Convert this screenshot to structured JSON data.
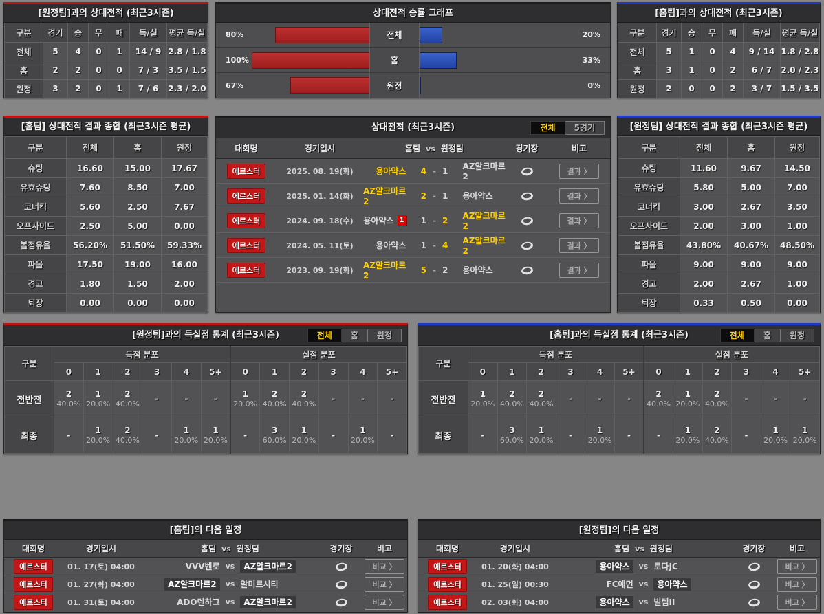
{
  "accent": {
    "red": "#c01313",
    "blue": "#2038c8",
    "yellow": "#ffd000",
    "bar_red": "#b02a2a",
    "bar_blue": "#2c4eb5"
  },
  "shared": {
    "vs": "vs",
    "score_sep": "-"
  },
  "record_vs_away": {
    "title": "[원정팀]과의 상대전적 (최근3시즌)",
    "headers": [
      "구분",
      "경기",
      "승",
      "무",
      "패",
      "득/실",
      "평균 득/실"
    ],
    "rows": [
      {
        "label": "전체",
        "cells": [
          "5",
          "4",
          "0",
          "1",
          "14 / 9",
          "2.8 / 1.8"
        ]
      },
      {
        "label": "홈",
        "cells": [
          "2",
          "2",
          "0",
          "0",
          "7 / 3",
          "3.5 / 1.5"
        ]
      },
      {
        "label": "원정",
        "cells": [
          "3",
          "2",
          "0",
          "1",
          "7 / 6",
          "2.3 / 2.0"
        ]
      }
    ]
  },
  "win_graph": {
    "title": "상대전적 승률 그래프",
    "rows": [
      {
        "label": "전체",
        "home_pct": "80%",
        "home_val": 80,
        "away_pct": "20%",
        "away_val": 20
      },
      {
        "label": "홈",
        "home_pct": "100%",
        "home_val": 100,
        "away_pct": "33%",
        "away_val": 33
      },
      {
        "label": "원정",
        "home_pct": "67%",
        "home_val": 67,
        "away_pct": "0%",
        "away_val": 0
      }
    ]
  },
  "record_vs_home": {
    "title": "[홈팀]과의 상대전적 (최근3시즌)",
    "headers": [
      "구분",
      "경기",
      "승",
      "무",
      "패",
      "득/실",
      "평균 득/실"
    ],
    "rows": [
      {
        "label": "전체",
        "cells": [
          "5",
          "1",
          "0",
          "4",
          "9 / 14",
          "1.8 / 2.8"
        ]
      },
      {
        "label": "홈",
        "cells": [
          "3",
          "1",
          "0",
          "2",
          "6 / 7",
          "2.0 / 2.3"
        ]
      },
      {
        "label": "원정",
        "cells": [
          "2",
          "0",
          "0",
          "2",
          "3 / 7",
          "1.5 / 3.5"
        ]
      }
    ]
  },
  "summary_home": {
    "title": "[홈팀] 상대전적 결과 종합 (최근3시즌 평균)",
    "headers": [
      "구분",
      "전체",
      "홈",
      "원정"
    ],
    "rows": [
      {
        "label": "슈팅",
        "cells": [
          "16.60",
          "15.00",
          "17.67"
        ]
      },
      {
        "label": "유효슈팅",
        "cells": [
          "7.60",
          "8.50",
          "7.00"
        ]
      },
      {
        "label": "코너킥",
        "cells": [
          "5.60",
          "2.50",
          "7.67"
        ]
      },
      {
        "label": "오프사이드",
        "cells": [
          "2.50",
          "5.00",
          "0.00"
        ]
      },
      {
        "label": "볼점유율",
        "cells": [
          "56.20%",
          "51.50%",
          "59.33%"
        ]
      },
      {
        "label": "파울",
        "cells": [
          "17.50",
          "19.00",
          "16.00"
        ]
      },
      {
        "label": "경고",
        "cells": [
          "1.80",
          "1.50",
          "2.00"
        ]
      },
      {
        "label": "퇴장",
        "cells": [
          "0.00",
          "0.00",
          "0.00"
        ]
      }
    ]
  },
  "summary_away": {
    "title": "[원정팀] 상대전적 결과 종합 (최근3시즌 평균)",
    "headers": [
      "구분",
      "전체",
      "홈",
      "원정"
    ],
    "rows": [
      {
        "label": "슈팅",
        "cells": [
          "11.60",
          "9.67",
          "14.50"
        ]
      },
      {
        "label": "유효슈팅",
        "cells": [
          "5.80",
          "5.00",
          "7.00"
        ]
      },
      {
        "label": "코너킥",
        "cells": [
          "3.00",
          "2.67",
          "3.50"
        ]
      },
      {
        "label": "오프사이드",
        "cells": [
          "2.00",
          "3.00",
          "1.00"
        ]
      },
      {
        "label": "볼점유율",
        "cells": [
          "43.80%",
          "40.67%",
          "48.50%"
        ]
      },
      {
        "label": "파울",
        "cells": [
          "9.00",
          "9.00",
          "9.00"
        ]
      },
      {
        "label": "경고",
        "cells": [
          "2.00",
          "2.67",
          "1.00"
        ]
      },
      {
        "label": "퇴장",
        "cells": [
          "0.33",
          "0.50",
          "0.00"
        ]
      }
    ]
  },
  "h2h": {
    "title": "상대전적 (최근3시즌)",
    "tabs": [
      {
        "label": "전체"
      },
      {
        "label": "5경기"
      }
    ],
    "headers": {
      "league": "대회명",
      "datetime": "경기일시",
      "home": "홈팀",
      "vs": "vs",
      "away": "원정팀",
      "venue": "경기장",
      "note": "비고"
    },
    "result_button": "결과 〉",
    "rows": [
      {
        "league": "에르스터",
        "date": "2025. 08. 19(화)",
        "home": "용아약스",
        "home_score": "4",
        "away_score": "1",
        "away": "AZ알크마르2"
      },
      {
        "league": "에르스터",
        "date": "2025. 01. 14(화)",
        "home": "AZ알크마르2",
        "home_score": "2",
        "away_score": "1",
        "away": "용아약스"
      },
      {
        "league": "에르스터",
        "date": "2024. 09. 18(수)",
        "home": "용아약스",
        "home_card": "1",
        "home_score": "1",
        "away_score": "2",
        "away": "AZ알크마르2"
      },
      {
        "league": "에르스터",
        "date": "2024. 05. 11(토)",
        "home": "용아약스",
        "home_score": "1",
        "away_score": "4",
        "away": "AZ알크마르2"
      },
      {
        "league": "에르스터",
        "date": "2023. 09. 19(화)",
        "home": "AZ알크마르2",
        "home_score": "5",
        "away_score": "2",
        "away": "용아약스"
      }
    ]
  },
  "goals_vs_away": {
    "title": "[원정팀]과의 득실점 통계 (최근3시즌)",
    "tabs": [
      {
        "label": "전체"
      },
      {
        "label": "홈"
      },
      {
        "label": "원정"
      }
    ],
    "col_header": "구분",
    "group_scored": "득점 분포",
    "group_conceded": "실점 분포",
    "cols": [
      "0",
      "1",
      "2",
      "3",
      "4",
      "5+"
    ],
    "rows": [
      {
        "label": "전반전",
        "scored": [
          {
            "n": "2",
            "p": "40.0%"
          },
          {
            "n": "1",
            "p": "20.0%"
          },
          {
            "n": "2",
            "p": "40.0%"
          },
          {
            "n": "-",
            "p": ""
          },
          {
            "n": "-",
            "p": ""
          },
          {
            "n": "-",
            "p": ""
          }
        ],
        "conceded": [
          {
            "n": "1",
            "p": "20.0%"
          },
          {
            "n": "2",
            "p": "40.0%"
          },
          {
            "n": "2",
            "p": "40.0%"
          },
          {
            "n": "-",
            "p": ""
          },
          {
            "n": "-",
            "p": ""
          },
          {
            "n": "-",
            "p": ""
          }
        ]
      },
      {
        "label": "최종",
        "scored": [
          {
            "n": "-",
            "p": ""
          },
          {
            "n": "1",
            "p": "20.0%"
          },
          {
            "n": "2",
            "p": "40.0%"
          },
          {
            "n": "-",
            "p": ""
          },
          {
            "n": "1",
            "p": "20.0%"
          },
          {
            "n": "1",
            "p": "20.0%"
          }
        ],
        "conceded": [
          {
            "n": "-",
            "p": ""
          },
          {
            "n": "3",
            "p": "60.0%"
          },
          {
            "n": "1",
            "p": "20.0%"
          },
          {
            "n": "-",
            "p": ""
          },
          {
            "n": "1",
            "p": "20.0%"
          },
          {
            "n": "-",
            "p": ""
          }
        ]
      }
    ]
  },
  "goals_vs_home": {
    "title": "[홈팀]과의 득실점 통계 (최근3시즌)",
    "tabs": [
      {
        "label": "전체"
      },
      {
        "label": "홈"
      },
      {
        "label": "원정"
      }
    ],
    "col_header": "구분",
    "group_scored": "득점 분포",
    "group_conceded": "실점 분포",
    "cols": [
      "0",
      "1",
      "2",
      "3",
      "4",
      "5+"
    ],
    "rows": [
      {
        "label": "전반전",
        "scored": [
          {
            "n": "1",
            "p": "20.0%"
          },
          {
            "n": "2",
            "p": "40.0%"
          },
          {
            "n": "2",
            "p": "40.0%"
          },
          {
            "n": "-",
            "p": ""
          },
          {
            "n": "-",
            "p": ""
          },
          {
            "n": "-",
            "p": ""
          }
        ],
        "conceded": [
          {
            "n": "2",
            "p": "40.0%"
          },
          {
            "n": "1",
            "p": "20.0%"
          },
          {
            "n": "2",
            "p": "40.0%"
          },
          {
            "n": "-",
            "p": ""
          },
          {
            "n": "-",
            "p": ""
          },
          {
            "n": "-",
            "p": ""
          }
        ]
      },
      {
        "label": "최종",
        "scored": [
          {
            "n": "-",
            "p": ""
          },
          {
            "n": "3",
            "p": "60.0%"
          },
          {
            "n": "1",
            "p": "20.0%"
          },
          {
            "n": "-",
            "p": ""
          },
          {
            "n": "1",
            "p": "20.0%"
          },
          {
            "n": "-",
            "p": ""
          }
        ],
        "conceded": [
          {
            "n": "-",
            "p": ""
          },
          {
            "n": "1",
            "p": "20.0%"
          },
          {
            "n": "2",
            "p": "40.0%"
          },
          {
            "n": "-",
            "p": ""
          },
          {
            "n": "1",
            "p": "20.0%"
          },
          {
            "n": "1",
            "p": "20.0%"
          }
        ]
      }
    ]
  },
  "schedule_home": {
    "title": "[홈팀]의 다음 일정",
    "headers": {
      "league": "대회명",
      "datetime": "경기일시",
      "home": "홈팀",
      "vs": "vs",
      "away": "원정팀",
      "venue": "경기장",
      "note": "비고"
    },
    "compare_button": "비교 〉",
    "rows": [
      {
        "league": "에르스터",
        "datetime": "01. 17(토) 04:00",
        "home": "VVV벤로",
        "away": "AZ알크마르2"
      },
      {
        "league": "에르스터",
        "datetime": "01. 27(화) 04:00",
        "home": "AZ알크마르2",
        "away": "알미르시티"
      },
      {
        "league": "에르스터",
        "datetime": "01. 31(토) 04:00",
        "home": "ADO덴하그",
        "away": "AZ알크마르2"
      }
    ]
  },
  "schedule_away": {
    "title": "[원정팀]의 다음 일정",
    "headers": {
      "league": "대회명",
      "datetime": "경기일시",
      "home": "홈팀",
      "vs": "vs",
      "away": "원정팀",
      "venue": "경기장",
      "note": "비고"
    },
    "compare_button": "비교 〉",
    "rows": [
      {
        "league": "에르스터",
        "datetime": "01. 20(화) 04:00",
        "home": "용아약스",
        "away": "로다JC"
      },
      {
        "league": "에르스터",
        "datetime": "01. 25(일) 00:30",
        "home": "FC에먼",
        "away": "용아약스"
      },
      {
        "league": "에르스터",
        "datetime": "02. 03(화) 04:00",
        "home": "용아약스",
        "away": "빌렘II"
      }
    ]
  }
}
